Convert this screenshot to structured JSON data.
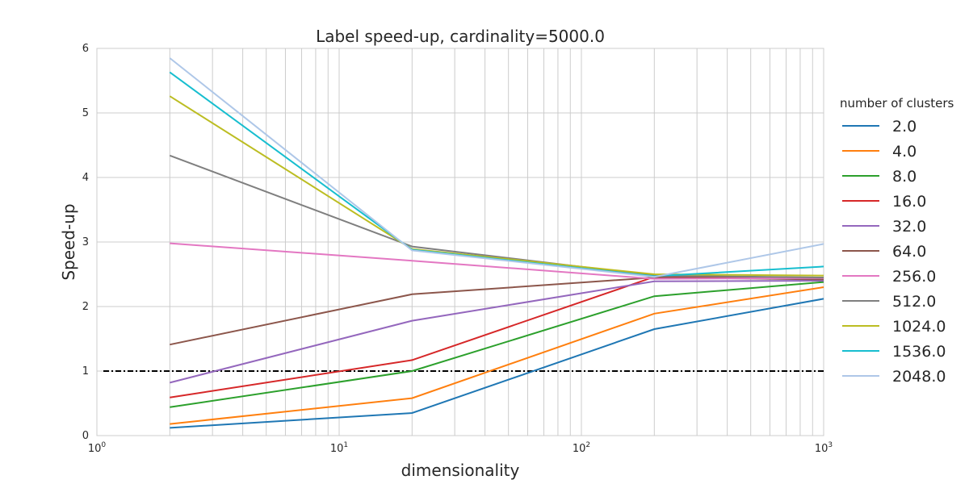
{
  "chart_data": {
    "type": "line",
    "title": "Label speed-up, cardinality=5000.0",
    "xlabel": "dimensionality",
    "ylabel": "Speed-up",
    "xscale": "log",
    "xlim": [
      1,
      1000
    ],
    "ylim": [
      0,
      6
    ],
    "x_ticks": [
      {
        "base": "10",
        "exp": "0"
      },
      {
        "base": "10",
        "exp": "1"
      },
      {
        "base": "10",
        "exp": "2"
      },
      {
        "base": "10",
        "exp": "3"
      }
    ],
    "y_ticks": [
      "0",
      "1",
      "2",
      "3",
      "4",
      "5",
      "6"
    ],
    "grid": true,
    "legend_title": "number of clusters",
    "legend_position": "right-outside",
    "x": [
      2,
      20,
      200,
      1000
    ],
    "series": [
      {
        "name": "2.0",
        "color": "#1f77b4",
        "values": [
          0.12,
          0.35,
          1.65,
          2.12
        ]
      },
      {
        "name": "4.0",
        "color": "#ff7f0e",
        "values": [
          0.18,
          0.58,
          1.89,
          2.3
        ]
      },
      {
        "name": "8.0",
        "color": "#2ca02c",
        "values": [
          0.44,
          1.0,
          2.16,
          2.38
        ]
      },
      {
        "name": "16.0",
        "color": "#d62728",
        "values": [
          0.59,
          1.17,
          2.46,
          2.44
        ]
      },
      {
        "name": "32.0",
        "color": "#9467bd",
        "values": [
          0.82,
          1.78,
          2.39,
          2.4
        ]
      },
      {
        "name": "64.0",
        "color": "#8c564b",
        "values": [
          1.41,
          2.19,
          2.45,
          2.42
        ]
      },
      {
        "name": "256.0",
        "color": "#e377c2",
        "values": [
          2.98,
          2.71,
          2.43,
          2.44
        ]
      },
      {
        "name": "512.0",
        "color": "#7f7f7f",
        "values": [
          4.34,
          2.93,
          2.48,
          2.45
        ]
      },
      {
        "name": "1024.0",
        "color": "#bcbd22",
        "values": [
          5.26,
          2.89,
          2.5,
          2.48
        ]
      },
      {
        "name": "1536.0",
        "color": "#17becf",
        "values": [
          5.63,
          2.88,
          2.47,
          2.62
        ]
      },
      {
        "name": "2048.0",
        "color": "#aec7e8",
        "values": [
          5.85,
          2.87,
          2.46,
          2.97
        ]
      }
    ],
    "reference_line": {
      "y": 1.0,
      "color": "#000000",
      "style": "dash-dot"
    }
  }
}
